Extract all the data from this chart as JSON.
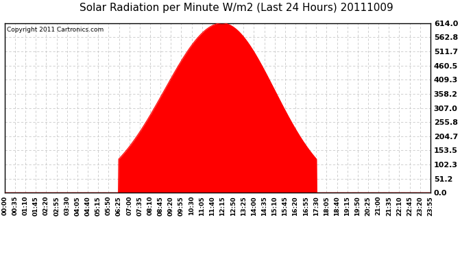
{
  "title": "Solar Radiation per Minute W/m2 (Last 24 Hours) 20111009",
  "copyright_text": "Copyright 2011 Cartronics.com",
  "y_ticks": [
    0.0,
    51.2,
    102.3,
    153.5,
    204.7,
    255.8,
    307.0,
    358.2,
    409.3,
    460.5,
    511.7,
    562.8,
    614.0
  ],
  "y_max": 614.0,
  "y_min": 0.0,
  "fill_color": "#FF0000",
  "line_color": "#FF0000",
  "dashed_line_color": "#FF0000",
  "grid_color": "#C8C8C8",
  "background_color": "#FFFFFF",
  "title_fontsize": 11,
  "copyright_fontsize": 6.5,
  "tick_fontsize": 6.5,
  "ytick_fontsize": 8,
  "x_tick_labels": [
    "00:00",
    "00:35",
    "01:10",
    "01:45",
    "02:20",
    "02:55",
    "03:30",
    "04:05",
    "04:40",
    "05:15",
    "05:50",
    "06:25",
    "07:00",
    "07:35",
    "08:10",
    "08:45",
    "09:20",
    "09:55",
    "10:30",
    "11:05",
    "11:40",
    "12:15",
    "12:50",
    "13:25",
    "14:00",
    "14:35",
    "15:10",
    "15:45",
    "16:20",
    "16:55",
    "17:30",
    "18:05",
    "18:40",
    "19:15",
    "19:50",
    "20:25",
    "21:00",
    "21:35",
    "22:10",
    "22:45",
    "23:20",
    "23:55"
  ],
  "num_points": 1440,
  "peak_hour": 12.25,
  "peak_value": 614.0,
  "rise_hour": 6.42,
  "set_hour": 17.58
}
